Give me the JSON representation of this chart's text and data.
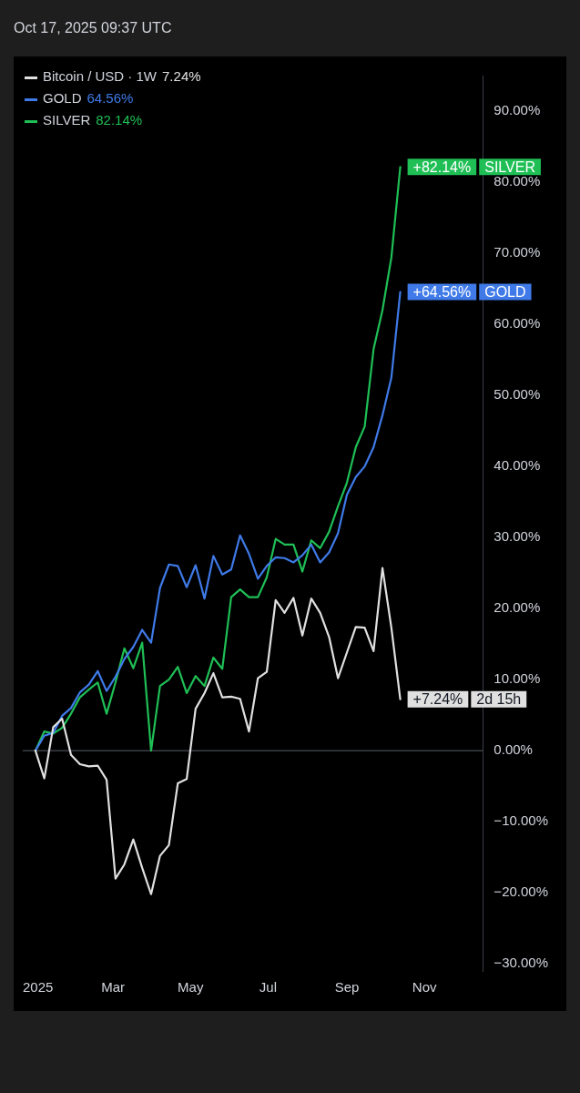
{
  "chart_data": {
    "type": "line",
    "x": [
      "2024-12-30",
      "2025-01-06",
      "2025-01-13",
      "2025-01-20",
      "2025-01-27",
      "2025-02-03",
      "2025-02-10",
      "2025-02-17",
      "2025-02-24",
      "2025-03-03",
      "2025-03-10",
      "2025-03-17",
      "2025-03-24",
      "2025-03-31",
      "2025-04-07",
      "2025-04-14",
      "2025-04-21",
      "2025-04-28",
      "2025-05-05",
      "2025-05-12",
      "2025-05-19",
      "2025-05-26",
      "2025-06-02",
      "2025-06-09",
      "2025-06-16",
      "2025-06-23",
      "2025-06-30",
      "2025-07-07",
      "2025-07-14",
      "2025-07-21",
      "2025-07-28",
      "2025-08-04",
      "2025-08-11",
      "2025-08-18",
      "2025-08-25",
      "2025-09-01",
      "2025-09-08",
      "2025-09-15",
      "2025-09-22",
      "2025-09-29",
      "2025-10-06",
      "2025-10-13"
    ],
    "series": [
      {
        "name": "Bitcoin / USD · 1W",
        "color": "#e0e0e0",
        "values": [
          0,
          -3.9,
          3.3,
          4.5,
          -0.6,
          -1.9,
          -2.2,
          -2.1,
          -4.1,
          -18,
          -16,
          -12.5,
          -16.5,
          -20.2,
          -14.8,
          -13.3,
          -4.6,
          -4,
          5.9,
          8.1,
          10.9,
          7.5,
          7.6,
          7.3,
          2.7,
          10.2,
          11.1,
          21.2,
          19.4,
          21.5,
          16.2,
          21.4,
          19.4,
          16,
          10.2,
          13.8,
          17.4,
          17.3,
          14,
          25.7,
          17.3,
          7.24
        ],
        "value_labels": [
          null,
          null,
          null,
          null,
          null,
          null,
          null,
          null,
          null,
          null,
          null,
          null,
          null,
          null,
          null,
          null,
          null,
          null,
          null,
          null,
          null,
          null,
          null,
          null,
          null,
          null,
          null,
          null,
          null,
          null,
          null,
          null,
          null,
          null,
          null,
          null,
          null,
          null,
          null,
          null,
          null,
          "+7.24%"
        ]
      },
      {
        "name": "GOLD",
        "color": "#3f7ae8",
        "values": [
          0,
          2.1,
          2.5,
          4.9,
          6,
          8.2,
          9.3,
          11.2,
          8.4,
          10.4,
          12.9,
          14.6,
          17,
          15.2,
          22.9,
          26.2,
          26,
          23,
          26.1,
          21.4,
          27.4,
          24.8,
          25.5,
          30.3,
          27.7,
          24.2,
          26,
          27.2,
          27.1,
          26.5,
          27.5,
          29,
          26.5,
          27.9,
          30.6,
          36,
          38.5,
          40,
          42.7,
          47.2,
          52.5,
          64.56
        ],
        "value_labels": [
          null,
          null,
          null,
          null,
          null,
          null,
          null,
          null,
          null,
          null,
          null,
          null,
          null,
          null,
          null,
          null,
          null,
          null,
          null,
          null,
          null,
          null,
          null,
          null,
          null,
          null,
          null,
          null,
          null,
          null,
          null,
          null,
          null,
          null,
          null,
          null,
          null,
          null,
          null,
          null,
          null,
          "+64.56%"
        ]
      },
      {
        "name": "SILVER",
        "color": "#1fbf56",
        "values": [
          0,
          2.7,
          2.4,
          3.2,
          5.2,
          7.5,
          8.6,
          9.6,
          5.2,
          9.6,
          14.4,
          11.6,
          15.2,
          0,
          9.1,
          10,
          11.8,
          8.1,
          10.5,
          9.1,
          13.1,
          11.5,
          21.6,
          22.7,
          21.6,
          21.6,
          24.4,
          29.8,
          29,
          29,
          25.2,
          29.6,
          28.5,
          30.8,
          34.4,
          37.7,
          42.7,
          45.6,
          56.5,
          62,
          69.4,
          82.14
        ],
        "value_labels": [
          null,
          null,
          null,
          null,
          null,
          null,
          null,
          null,
          null,
          null,
          null,
          null,
          null,
          null,
          null,
          null,
          null,
          null,
          null,
          null,
          null,
          null,
          null,
          null,
          null,
          null,
          null,
          null,
          null,
          null,
          null,
          null,
          null,
          null,
          null,
          null,
          null,
          null,
          null,
          null,
          null,
          "+82.14%"
        ]
      }
    ],
    "xlim": [
      "2024-12-20",
      "2025-12-17"
    ],
    "xticks": [
      {
        "value": "2025-01-01",
        "label": "2025"
      },
      {
        "value": "2025-03-01",
        "label": "Mar"
      },
      {
        "value": "2025-05-01",
        "label": "May"
      },
      {
        "value": "2025-07-01",
        "label": "Jul"
      },
      {
        "value": "2025-09-01",
        "label": "Sep"
      },
      {
        "value": "2025-11-01",
        "label": "Nov"
      }
    ],
    "ylim": [
      -31,
      95
    ],
    "yticks": [
      {
        "value": -30,
        "label": "−30.00%"
      },
      {
        "value": -20,
        "label": "−20.00%"
      },
      {
        "value": -10,
        "label": "−10.00%"
      },
      {
        "value": 0,
        "label": "0.00%"
      },
      {
        "value": 10,
        "label": "10.00%"
      },
      {
        "value": 20,
        "label": "20.00%"
      },
      {
        "value": 30,
        "label": "30.00%"
      },
      {
        "value": 40,
        "label": "40.00%"
      },
      {
        "value": 50,
        "label": "50.00%"
      },
      {
        "value": 60,
        "label": "60.00%"
      },
      {
        "value": 70,
        "label": "70.00%"
      },
      {
        "value": 80,
        "label": "80.00%"
      },
      {
        "value": 90,
        "label": "90.00%"
      }
    ],
    "ref_lines": [
      {
        "axis": "y",
        "value": 0,
        "color": "#5d606b"
      }
    ],
    "legend": "top left",
    "marker": "none",
    "line_style": "solid",
    "annotations": [
      "Oct 17, 2025 09:37 UTC",
      "7.24%",
      "64.56%",
      "82.14%",
      "2d 15h",
      "GOLD",
      "SILVER"
    ]
  }
}
